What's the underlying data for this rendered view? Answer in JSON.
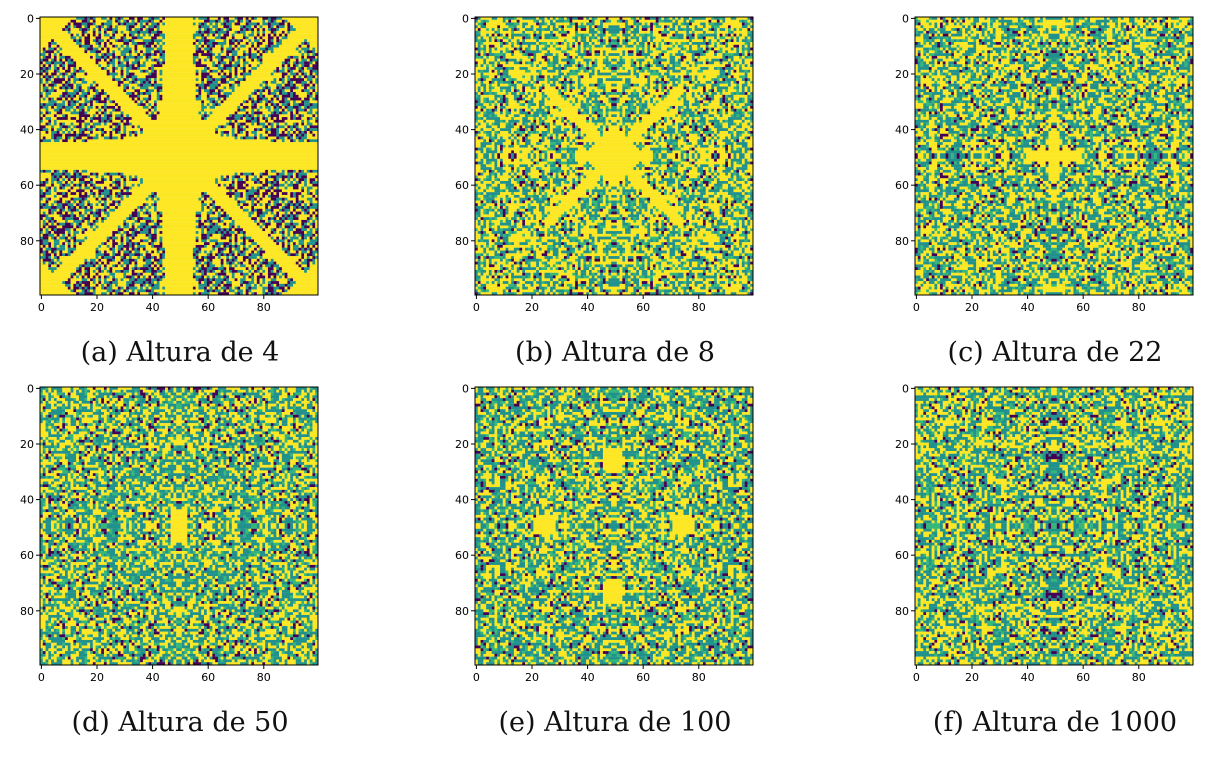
{
  "colors": {
    "palette": [
      "#440154",
      "#21918c",
      "#fde725",
      "#35b779"
    ],
    "axis": "#000000"
  },
  "panels": [
    {
      "caption": "(a) Altura de 4",
      "pattern": "symmetric-leaves",
      "height": 4
    },
    {
      "caption": "(b) Altura de 8",
      "pattern": "symmetric-fractal",
      "height": 8
    },
    {
      "caption": "(c) Altura de 22",
      "pattern": "dense-symmetric-cross",
      "height": 22
    },
    {
      "caption": "(d) Altura de 50",
      "pattern": "dense-noise-diamonds",
      "height": 50
    },
    {
      "caption": "(e) Altura de 100",
      "pattern": "dense-noise-squares",
      "height": 100
    },
    {
      "caption": "(f) Altura de 1000",
      "pattern": "dense-noise-grid",
      "height": 1000
    }
  ],
  "chart_data": [
    {
      "type": "heatmap",
      "title": "(a) Altura de 4",
      "xlim": [
        0,
        99
      ],
      "ylim": [
        0,
        99
      ],
      "xticks": [
        0,
        20,
        40,
        60,
        80
      ],
      "yticks": [
        0,
        20,
        40,
        60,
        80
      ],
      "grid": false
    },
    {
      "type": "heatmap",
      "title": "(b) Altura de 8",
      "xlim": [
        0,
        99
      ],
      "ylim": [
        0,
        99
      ],
      "xticks": [
        0,
        20,
        40,
        60,
        80
      ],
      "yticks": [
        0,
        20,
        40,
        60,
        80
      ],
      "grid": false
    },
    {
      "type": "heatmap",
      "title": "(c) Altura de 22",
      "xlim": [
        0,
        99
      ],
      "ylim": [
        0,
        99
      ],
      "xticks": [
        0,
        20,
        40,
        60,
        80
      ],
      "yticks": [
        0,
        20,
        40,
        60,
        80
      ],
      "grid": false
    },
    {
      "type": "heatmap",
      "title": "(d) Altura de 50",
      "xlim": [
        0,
        99
      ],
      "ylim": [
        0,
        99
      ],
      "xticks": [
        0,
        20,
        40,
        60,
        80
      ],
      "yticks": [
        0,
        20,
        40,
        60,
        80
      ],
      "grid": false
    },
    {
      "type": "heatmap",
      "title": "(e) Altura de 100",
      "xlim": [
        0,
        99
      ],
      "ylim": [
        0,
        99
      ],
      "xticks": [
        0,
        20,
        40,
        60,
        80
      ],
      "yticks": [
        0,
        20,
        40,
        60,
        80
      ],
      "grid": false
    },
    {
      "type": "heatmap",
      "title": "(f) Altura de 1000",
      "xlim": [
        0,
        99
      ],
      "ylim": [
        0,
        99
      ],
      "xticks": [
        0,
        20,
        40,
        60,
        80
      ],
      "yticks": [
        0,
        20,
        40,
        60,
        80
      ],
      "grid": false
    }
  ]
}
